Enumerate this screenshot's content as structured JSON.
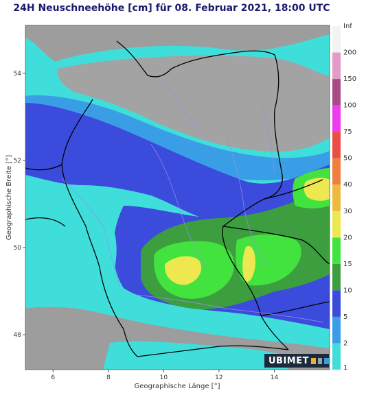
{
  "title": "24H Neuschneehöhe [cm] für 08. Februar 2021, 18:00 UTC",
  "map": {
    "xlabel": "Geographische Länge [°]",
    "ylabel": "Geographische Breite [°]",
    "x_ticks": [
      "6",
      "8",
      "10",
      "12",
      "14"
    ],
    "y_ticks": [
      "54",
      "52",
      "50",
      "48"
    ],
    "lon_range": [
      5,
      16
    ],
    "lat_range": [
      47.2,
      55.1
    ]
  },
  "legend": {
    "levels": [
      "1",
      "2",
      "5",
      "10",
      "15",
      "20",
      "30",
      "40",
      "50",
      "75",
      "100",
      "150",
      "200",
      "Inf"
    ],
    "colors": [
      "#3fdedb",
      "#3a9ee6",
      "#3b4bdc",
      "#3d9e3f",
      "#42e33f",
      "#ede84f",
      "#edba3f",
      "#ef7f40",
      "#ea4d45",
      "#ec3cf0",
      "#a84a86",
      "#e59bc7",
      "#f3f3f3"
    ]
  },
  "logo": {
    "text": "UBIMET"
  }
}
